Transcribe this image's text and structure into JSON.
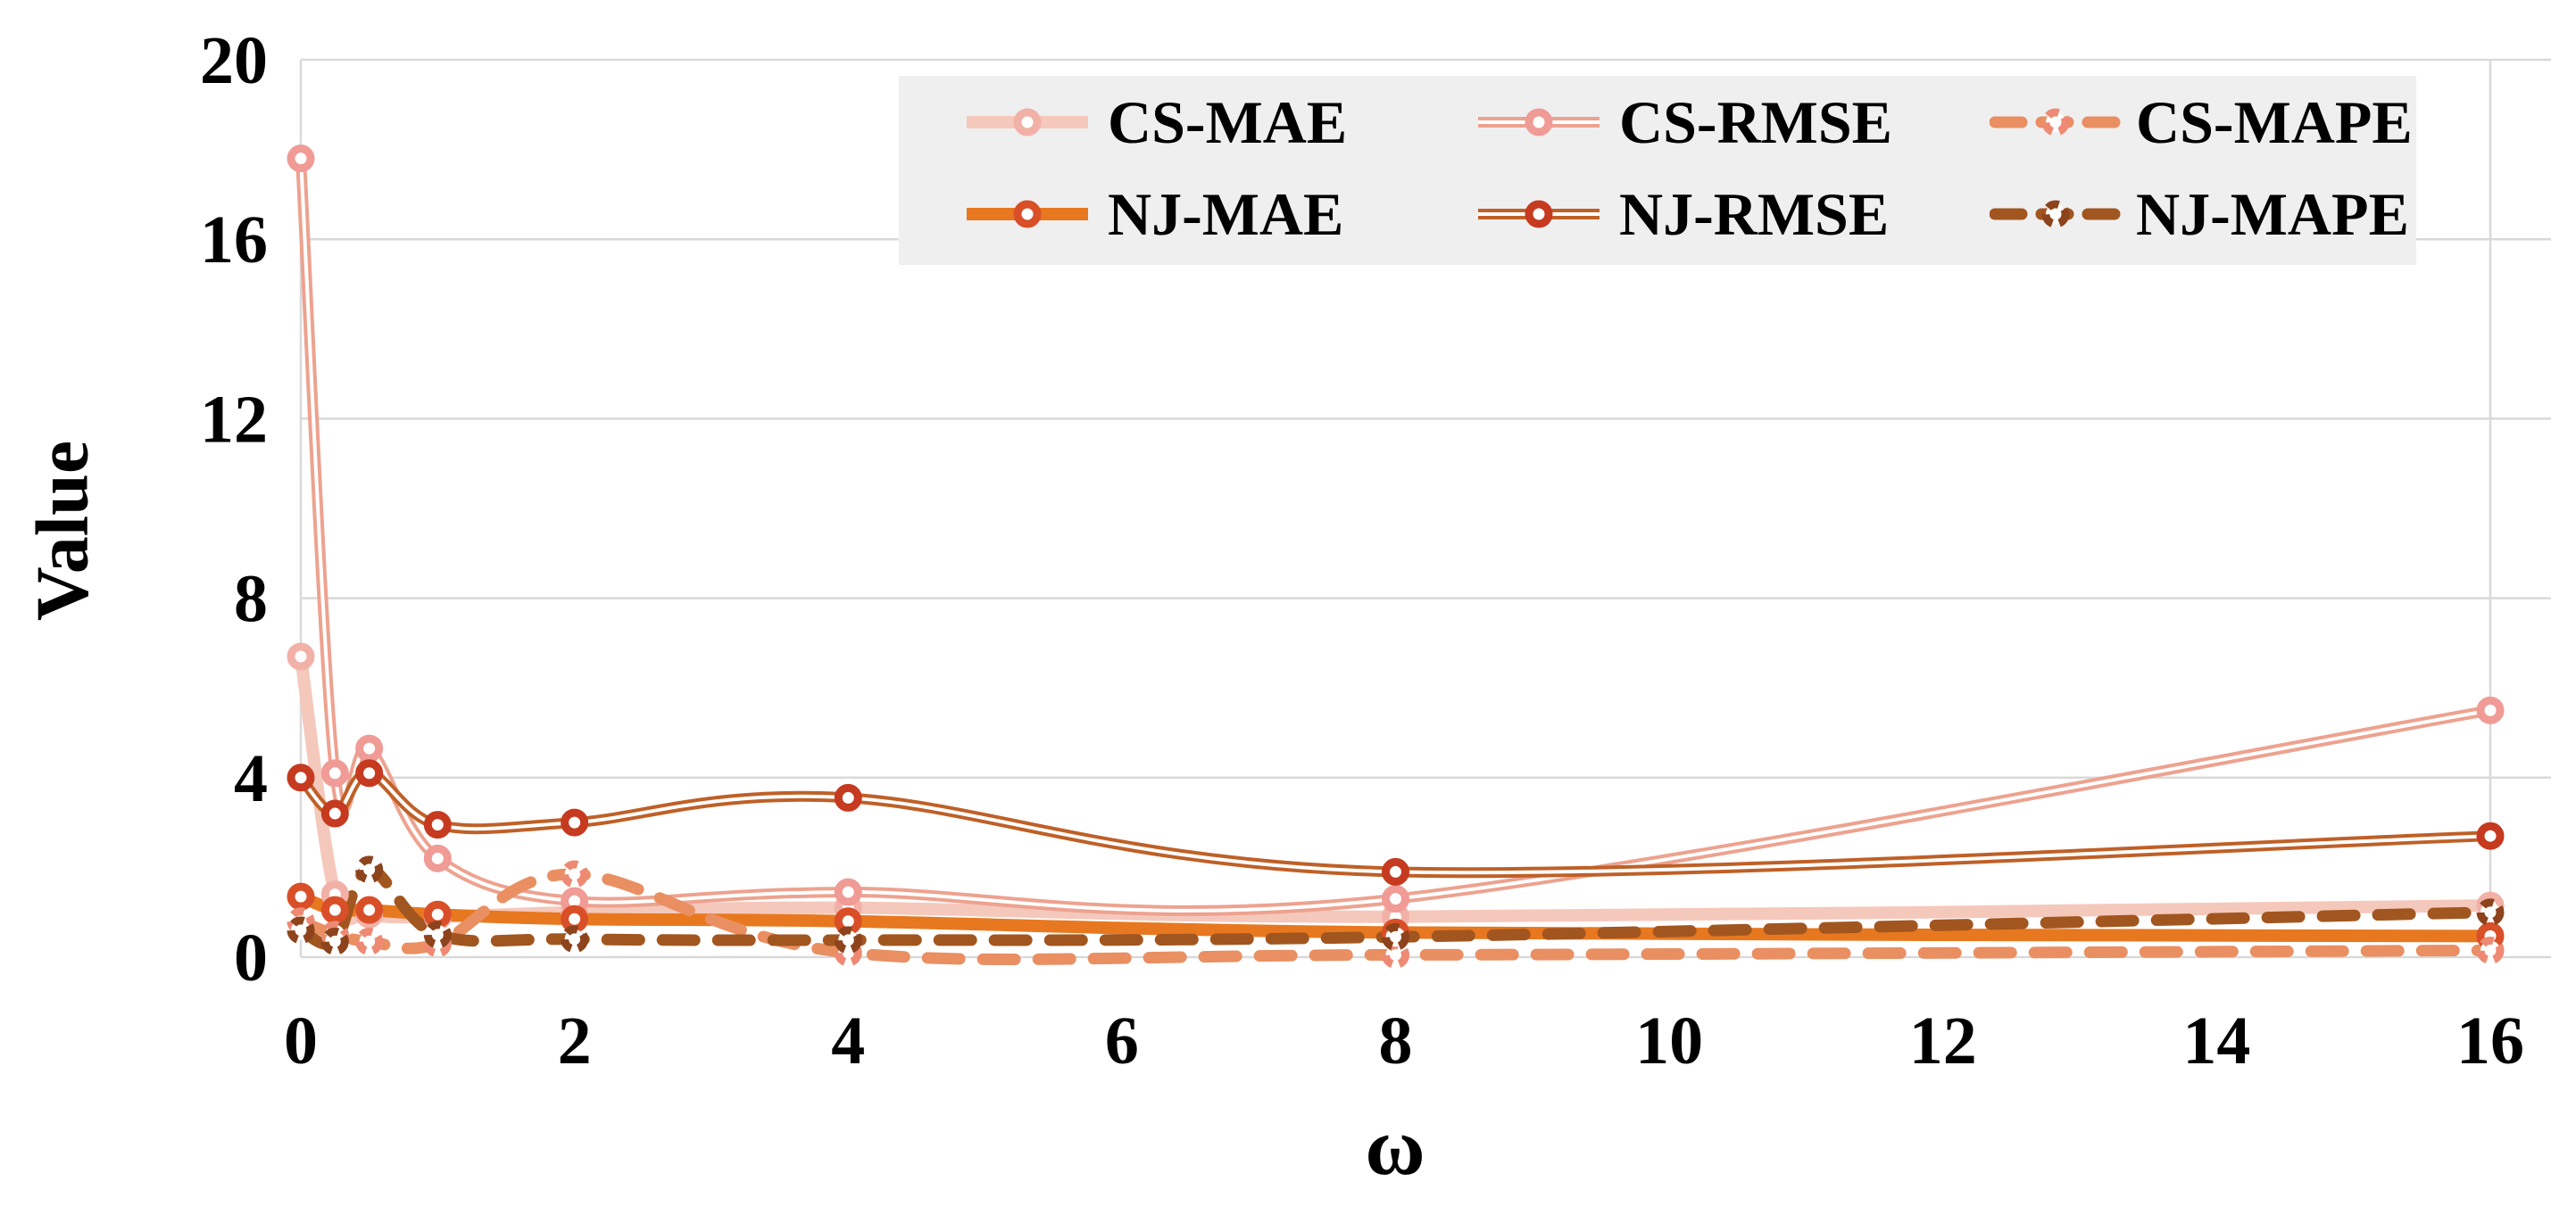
{
  "chart_data": {
    "type": "line",
    "title": "",
    "xlabel": "ω",
    "ylabel": "Value",
    "xlim": [
      0,
      16
    ],
    "ylim": [
      0,
      20
    ],
    "x_tick_labels": [
      "0",
      "2",
      "4",
      "6",
      "8",
      "10",
      "12",
      "14",
      "16"
    ],
    "x_tick_values": [
      0,
      2,
      4,
      6,
      8,
      10,
      12,
      14,
      16
    ],
    "y_tick_labels": [
      "0",
      "4",
      "8",
      "12",
      "16",
      "20"
    ],
    "y_tick_values": [
      0,
      4,
      8,
      12,
      16,
      20
    ],
    "grid": "horizontal-only",
    "grid_color": "#d9d9d9",
    "legend_position": "top-center",
    "legend_background": "#efeff0",
    "x": [
      0,
      0.25,
      0.5,
      1,
      2,
      4,
      8,
      16
    ],
    "series": [
      {
        "name": "CS-MAE",
        "style": "solid",
        "color": "#f5c8bc",
        "marker_color": "#f2b1a7",
        "values": [
          6.7,
          1.4,
          0.95,
          0.9,
          1.0,
          1.1,
          0.9,
          1.15
        ]
      },
      {
        "name": "CS-RMSE",
        "style": "outlined",
        "color": "#eda28f",
        "marker_color": "#f09b95",
        "values": [
          17.8,
          4.1,
          4.65,
          2.2,
          1.25,
          1.45,
          1.3,
          5.5
        ]
      },
      {
        "name": "CS-MAPE",
        "style": "dashed",
        "color": "#e98f62",
        "marker_color": "#ee8a74",
        "values": [
          0.8,
          0.5,
          0.35,
          0.3,
          1.85,
          0.1,
          0.05,
          0.15
        ]
      },
      {
        "name": "NJ-MAE",
        "style": "solid",
        "color": "#e8781f",
        "marker_color": "#d94f28",
        "values": [
          1.35,
          1.05,
          1.05,
          0.95,
          0.85,
          0.8,
          0.55,
          0.47
        ]
      },
      {
        "name": "NJ-RMSE",
        "style": "outlined",
        "color": "#bf6027",
        "marker_color": "#c63a20",
        "values": [
          4.0,
          3.2,
          4.1,
          2.95,
          3.0,
          3.55,
          1.9,
          2.7
        ]
      },
      {
        "name": "NJ-MAPE",
        "style": "dashed",
        "color": "#a2561f",
        "marker_color": "#8d431c",
        "values": [
          0.6,
          0.35,
          1.95,
          0.5,
          0.4,
          0.38,
          0.45,
          1.0
        ]
      }
    ],
    "legend_order": [
      "CS-MAE",
      "CS-RMSE",
      "CS-MAPE",
      "NJ-MAE",
      "NJ-RMSE",
      "NJ-MAPE"
    ],
    "draw_order": [
      "CS-MAE",
      "CS-RMSE",
      "NJ-RMSE",
      "NJ-MAE",
      "CS-MAPE",
      "NJ-MAPE"
    ]
  }
}
